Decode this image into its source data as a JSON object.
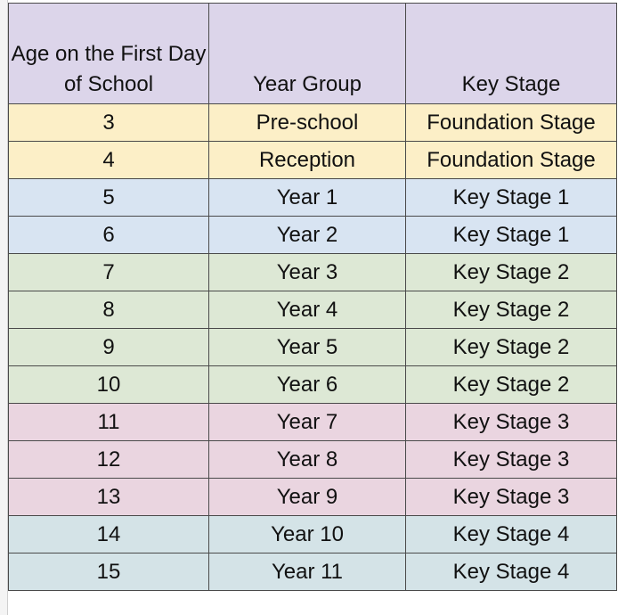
{
  "table": {
    "headers": {
      "age": "Age on the First Day of School",
      "year_group": "Year Group",
      "key_stage": "Key Stage"
    },
    "colors": {
      "header": "#dcd5ea",
      "foundation": "#fcefc7",
      "key_stage_1": "#d8e4f2",
      "key_stage_2": "#dde8d5",
      "key_stage_3": "#ead5e0",
      "key_stage_4": "#d4e3e7"
    },
    "rows": [
      {
        "age": "3",
        "year_group": "Pre-school",
        "key_stage": "Foundation Stage",
        "color": "#fcefc7"
      },
      {
        "age": "4",
        "year_group": "Reception",
        "key_stage": "Foundation Stage",
        "color": "#fcefc7"
      },
      {
        "age": "5",
        "year_group": "Year 1",
        "key_stage": "Key Stage 1",
        "color": "#d8e4f2"
      },
      {
        "age": "6",
        "year_group": "Year 2",
        "key_stage": "Key Stage 1",
        "color": "#d8e4f2"
      },
      {
        "age": "7",
        "year_group": "Year 3",
        "key_stage": "Key Stage 2",
        "color": "#dde8d5"
      },
      {
        "age": "8",
        "year_group": "Year 4",
        "key_stage": "Key Stage 2",
        "color": "#dde8d5"
      },
      {
        "age": "9",
        "year_group": "Year 5",
        "key_stage": "Key Stage 2",
        "color": "#dde8d5"
      },
      {
        "age": "10",
        "year_group": "Year 6",
        "key_stage": "Key Stage 2",
        "color": "#dde8d5"
      },
      {
        "age": "11",
        "year_group": "Year 7",
        "key_stage": "Key Stage 3",
        "color": "#ead5e0"
      },
      {
        "age": "12",
        "year_group": "Year 8",
        "key_stage": "Key Stage 3",
        "color": "#ead5e0"
      },
      {
        "age": "13",
        "year_group": "Year 9",
        "key_stage": "Key Stage 3",
        "color": "#ead5e0"
      },
      {
        "age": "14",
        "year_group": "Year 10",
        "key_stage": "Key Stage 4",
        "color": "#d4e3e7"
      },
      {
        "age": "15",
        "year_group": "Year 11",
        "key_stage": "Key Stage 4",
        "color": "#d4e3e7"
      }
    ]
  }
}
